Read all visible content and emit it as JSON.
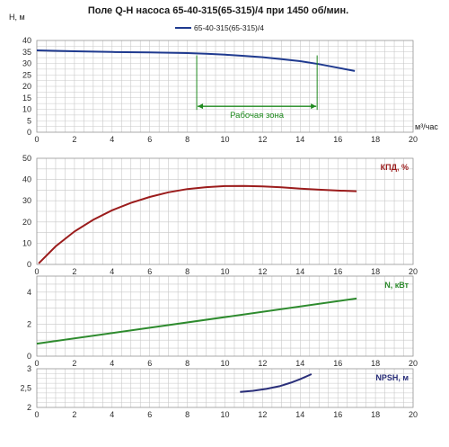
{
  "title": "Поле Q-H насоса 65-40-315(65-315)/4 при 1450 об/мин.",
  "chart_data": [
    {
      "type": "line",
      "ylabel": "H, м",
      "xlabel": "м³/час",
      "xlim": [
        0,
        20
      ],
      "ylim": [
        0,
        40
      ],
      "x_ticks": [
        0,
        2,
        4,
        6,
        8,
        10,
        12,
        14,
        16,
        18,
        20
      ],
      "y_ticks": [
        0,
        5,
        10,
        15,
        20,
        25,
        30,
        35,
        40
      ],
      "legend": "top-center",
      "series": [
        {
          "name": "65-40-315(65-315)/4",
          "color": "#1f3a8f",
          "x": [
            0,
            2,
            4,
            6,
            8,
            9,
            10,
            11,
            12,
            13,
            14,
            15,
            16,
            16.9
          ],
          "y": [
            35.7,
            35.3,
            35.0,
            34.8,
            34.5,
            34.2,
            33.8,
            33.3,
            32.7,
            31.9,
            31.0,
            29.7,
            28.1,
            26.7
          ]
        }
      ],
      "annotation": {
        "text": "Рабочая зона",
        "color": "#1e8a1e",
        "x_from": 8.5,
        "x_to": 14.9
      }
    },
    {
      "type": "line",
      "ylabel": "КПД, %",
      "xlim": [
        0,
        20
      ],
      "ylim": [
        0,
        50
      ],
      "x_ticks": [
        0,
        2,
        4,
        6,
        8,
        10,
        12,
        14,
        16,
        18,
        20
      ],
      "y_ticks": [
        0,
        10,
        20,
        30,
        40,
        50
      ],
      "color": "#9b1c1c",
      "x": [
        0.1,
        1,
        2,
        3,
        4,
        5,
        6,
        7,
        8,
        9,
        10,
        11,
        12,
        13,
        14,
        15,
        16,
        17
      ],
      "y": [
        0.5,
        8.5,
        15.5,
        21.0,
        25.5,
        29.0,
        31.8,
        34.0,
        35.5,
        36.4,
        36.9,
        37.0,
        36.8,
        36.3,
        35.7,
        35.2,
        34.8,
        34.5
      ]
    },
    {
      "type": "line",
      "ylabel": "N, кВт",
      "xlim": [
        0,
        20
      ],
      "ylim": [
        0,
        5
      ],
      "x_ticks": [
        0,
        2,
        4,
        6,
        8,
        10,
        12,
        14,
        16,
        18,
        20
      ],
      "y_ticks": [
        0,
        2,
        4
      ],
      "color": "#2e8b2e",
      "x": [
        0,
        17
      ],
      "y": [
        0.78,
        3.6
      ]
    },
    {
      "type": "line",
      "ylabel": "NPSH, м",
      "xlim": [
        0,
        20
      ],
      "ylim": [
        2,
        3
      ],
      "x_ticks": [
        0,
        2,
        4,
        6,
        8,
        10,
        12,
        14,
        16,
        18,
        20
      ],
      "y_ticks": [
        2,
        2.5,
        3
      ],
      "y_tick_labels": [
        "2",
        "2,5",
        "3"
      ],
      "color": "#2a2f7a",
      "x": [
        10.8,
        11.5,
        12.2,
        12.9,
        13.5,
        14.0,
        14.6
      ],
      "y": [
        2.4,
        2.43,
        2.48,
        2.55,
        2.64,
        2.73,
        2.86
      ]
    }
  ]
}
